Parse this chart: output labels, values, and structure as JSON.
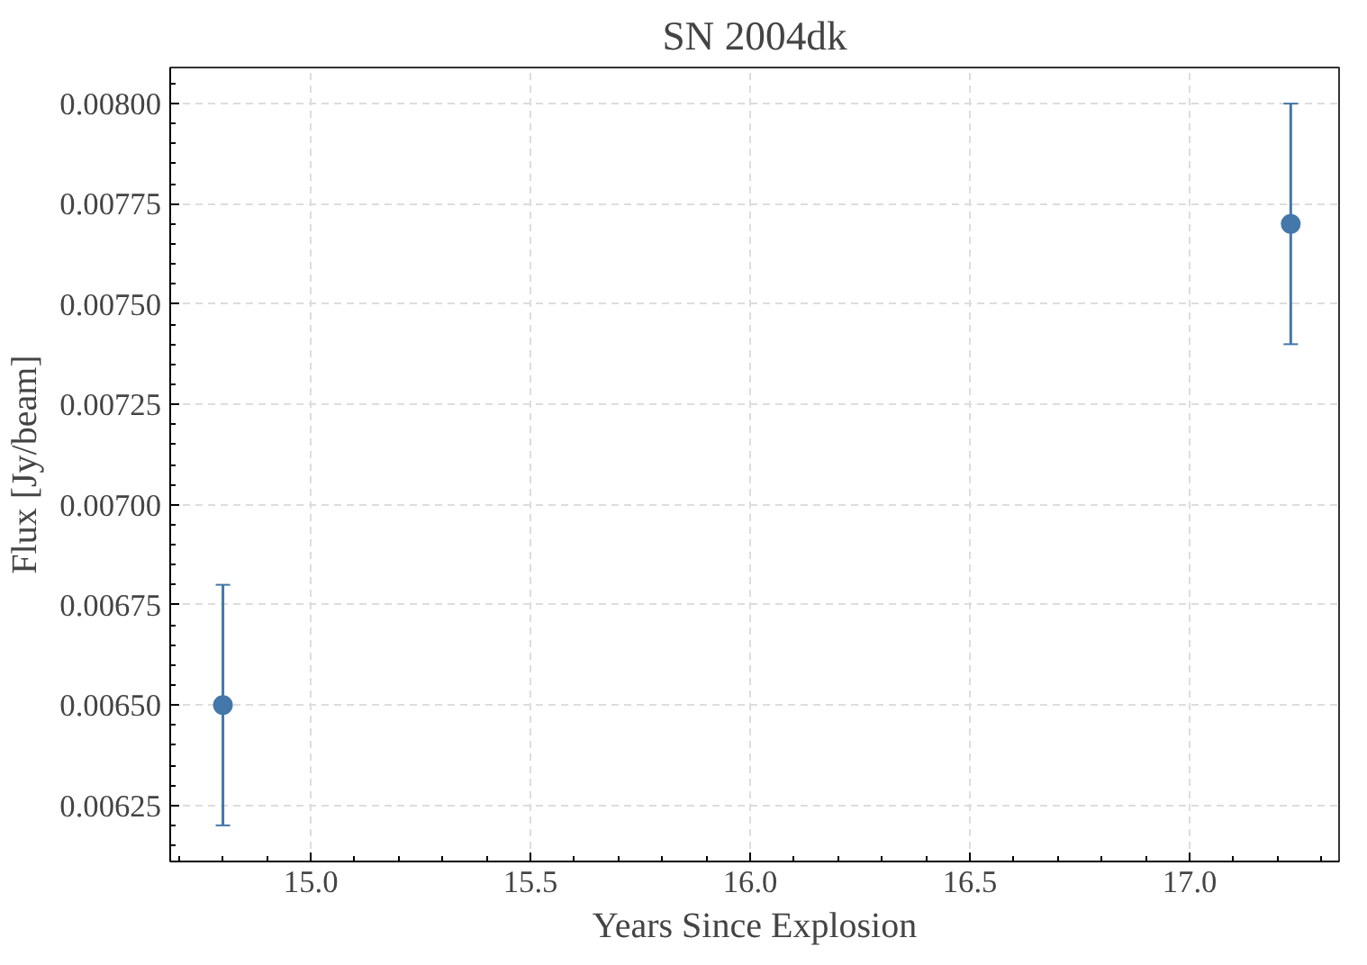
{
  "chart_data": {
    "type": "scatter",
    "title": "SN 2004dk",
    "xlabel": "Years Since Explosion",
    "ylabel": "Flux [Jy/beam]",
    "x": [
      14.8,
      17.23
    ],
    "series": [
      {
        "color": "#4477aa",
        "values": [
          0.0065,
          0.0077
        ],
        "errors": [
          0.0003,
          0.0003
        ]
      }
    ],
    "xlim": [
      14.68,
      17.34
    ],
    "xticks": [
      {
        "value": 15.0,
        "label": "15.0"
      },
      {
        "value": 15.5,
        "label": "15.5"
      },
      {
        "value": 16.0,
        "label": "16.0"
      },
      {
        "value": 16.5,
        "label": "16.5"
      },
      {
        "value": 17.0,
        "label": "17.0"
      }
    ],
    "ylim": [
      0.00611,
      0.00809
    ],
    "yticks": [
      {
        "value": 0.00625,
        "label": "0.00625"
      },
      {
        "value": 0.0065,
        "label": "0.00650"
      },
      {
        "value": 0.00675,
        "label": "0.00675"
      },
      {
        "value": 0.007,
        "label": "0.00700"
      },
      {
        "value": 0.00725,
        "label": "0.00725"
      },
      {
        "value": 0.0075,
        "label": "0.00750"
      },
      {
        "value": 0.00775,
        "label": "0.00775"
      },
      {
        "value": 0.008,
        "label": "0.00800"
      }
    ],
    "grid": true,
    "marker": "circle"
  }
}
